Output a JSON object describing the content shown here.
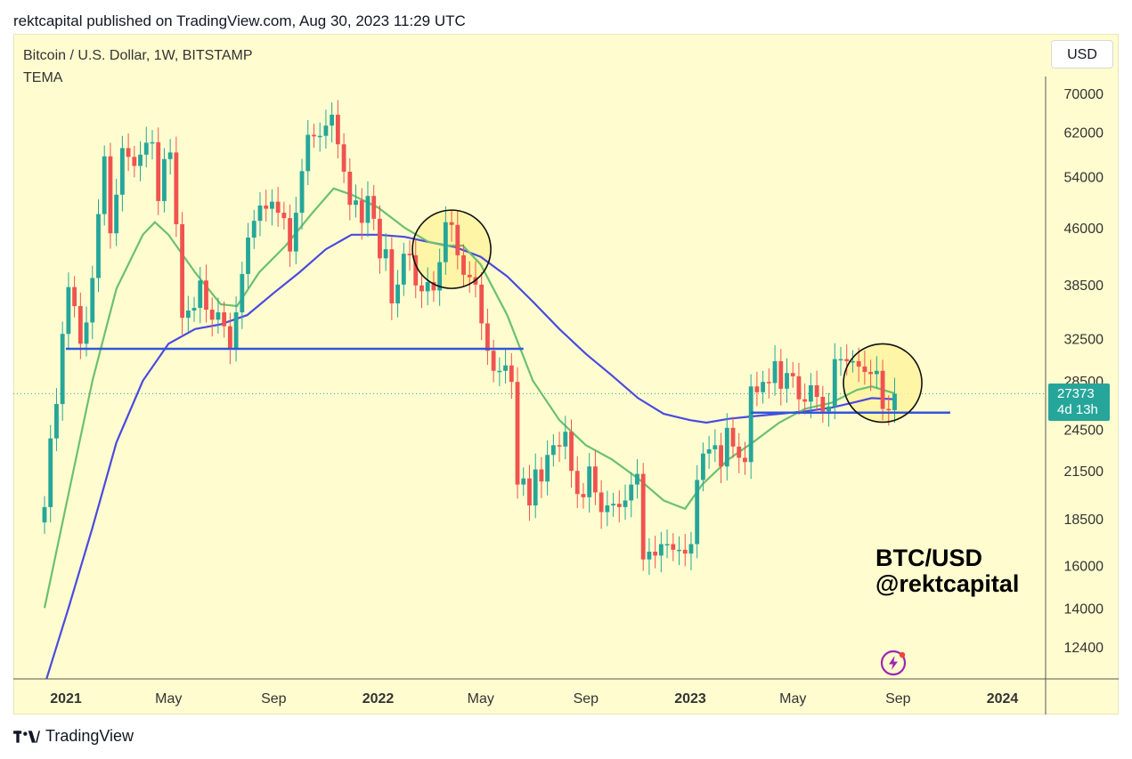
{
  "header": {
    "published": "rektcapital published on TradingView.com, Aug 30, 2023 11:29 UTC"
  },
  "chart_info": {
    "symbol": "Bitcoin / U.S. Dollar, 1W, BITSTAMP",
    "indicator": "TEMA"
  },
  "currency_button": "USD",
  "price_tag": {
    "price": "27373",
    "countdown": "4d 13h"
  },
  "watermark": {
    "line1": "BTC/USD",
    "line2": "@rektcapital"
  },
  "footer": {
    "brand": "TradingView"
  },
  "colors": {
    "up": "#26a69a",
    "down": "#ef5350",
    "tema_fast": "#6cc070",
    "tema_slow": "#4a4ae0",
    "support": "#3355dd",
    "background": "#fffdcf"
  },
  "chart_data": {
    "type": "candlestick",
    "title": "Bitcoin / U.S. Dollar, 1W, BITSTAMP",
    "y_scale": "log",
    "y_ticks": [
      70000,
      62000,
      54000,
      46000,
      38500,
      32500,
      28500,
      24500,
      21500,
      18500,
      16000,
      14000,
      12400
    ],
    "x_ticks": [
      {
        "label": "2021",
        "date": "2021-01-01",
        "bold": true
      },
      {
        "label": "May",
        "date": "2021-05-01",
        "bold": false
      },
      {
        "label": "Sep",
        "date": "2021-09-01",
        "bold": false
      },
      {
        "label": "2022",
        "date": "2022-01-01",
        "bold": true
      },
      {
        "label": "May",
        "date": "2022-05-01",
        "bold": false
      },
      {
        "label": "Sep",
        "date": "2022-09-01",
        "bold": false
      },
      {
        "label": "2023",
        "date": "2023-01-01",
        "bold": true
      },
      {
        "label": "May",
        "date": "2023-05-01",
        "bold": false
      },
      {
        "label": "Sep",
        "date": "2023-09-01",
        "bold": false
      },
      {
        "label": "2024",
        "date": "2024-01-01",
        "bold": true
      }
    ],
    "close_series": [
      [
        2020,
        12,
        7,
        19200
      ],
      [
        2020,
        12,
        14,
        23800
      ],
      [
        2020,
        12,
        21,
        26500
      ],
      [
        2020,
        12,
        28,
        33000
      ],
      [
        2021,
        1,
        4,
        38200
      ],
      [
        2021,
        1,
        11,
        36000
      ],
      [
        2021,
        1,
        18,
        32000
      ],
      [
        2021,
        1,
        25,
        34200
      ],
      [
        2021,
        2,
        1,
        39300
      ],
      [
        2021,
        2,
        8,
        48000
      ],
      [
        2021,
        2,
        15,
        57500
      ],
      [
        2021,
        2,
        22,
        45200
      ],
      [
        2021,
        3,
        1,
        51000
      ],
      [
        2021,
        3,
        8,
        59000
      ],
      [
        2021,
        3,
        15,
        57400
      ],
      [
        2021,
        3,
        22,
        55800
      ],
      [
        2021,
        3,
        29,
        57800
      ],
      [
        2021,
        4,
        5,
        60000
      ],
      [
        2021,
        4,
        12,
        60100
      ],
      [
        2021,
        4,
        19,
        50000
      ],
      [
        2021,
        4,
        26,
        57000
      ],
      [
        2021,
        5,
        3,
        58200
      ],
      [
        2021,
        5,
        10,
        46500
      ],
      [
        2021,
        5,
        17,
        34700
      ],
      [
        2021,
        5,
        24,
        35500
      ],
      [
        2021,
        5,
        31,
        35800
      ],
      [
        2021,
        6,
        7,
        39000
      ],
      [
        2021,
        6,
        14,
        35600
      ],
      [
        2021,
        6,
        21,
        34500
      ],
      [
        2021,
        6,
        28,
        35300
      ],
      [
        2021,
        7,
        5,
        33800
      ],
      [
        2021,
        7,
        12,
        31500
      ],
      [
        2021,
        7,
        19,
        35300
      ],
      [
        2021,
        7,
        26,
        39800
      ],
      [
        2021,
        8,
        2,
        44600
      ],
      [
        2021,
        8,
        9,
        47000
      ],
      [
        2021,
        8,
        16,
        49300
      ],
      [
        2021,
        8,
        23,
        48800
      ],
      [
        2021,
        8,
        30,
        49900
      ],
      [
        2021,
        9,
        6,
        48200
      ],
      [
        2021,
        9,
        13,
        47400
      ],
      [
        2021,
        9,
        20,
        42700
      ],
      [
        2021,
        9,
        27,
        48200
      ],
      [
        2021,
        10,
        4,
        54900
      ],
      [
        2021,
        10,
        11,
        61500
      ],
      [
        2021,
        10,
        18,
        61200
      ],
      [
        2021,
        10,
        25,
        61300
      ],
      [
        2021,
        11,
        1,
        63300
      ],
      [
        2021,
        11,
        8,
        65500
      ],
      [
        2021,
        11,
        15,
        59700
      ],
      [
        2021,
        11,
        22,
        54800
      ],
      [
        2021,
        11,
        29,
        49400
      ],
      [
        2021,
        12,
        6,
        50100
      ],
      [
        2021,
        12,
        13,
        46700
      ],
      [
        2021,
        12,
        20,
        50800
      ],
      [
        2021,
        12,
        27,
        47300
      ],
      [
        2022,
        1,
        3,
        41800
      ],
      [
        2022,
        1,
        10,
        43000
      ],
      [
        2022,
        1,
        17,
        36300
      ],
      [
        2022,
        1,
        24,
        38500
      ],
      [
        2022,
        1,
        31,
        42400
      ],
      [
        2022,
        2,
        7,
        42200
      ],
      [
        2022,
        2,
        14,
        38400
      ],
      [
        2022,
        2,
        21,
        37700
      ],
      [
        2022,
        2,
        28,
        38800
      ],
      [
        2022,
        3,
        7,
        37800
      ],
      [
        2022,
        3,
        14,
        41300
      ],
      [
        2022,
        3,
        21,
        46800
      ],
      [
        2022,
        3,
        28,
        46400
      ],
      [
        2022,
        4,
        4,
        42200
      ],
      [
        2022,
        4,
        11,
        39700
      ],
      [
        2022,
        4,
        18,
        39400
      ],
      [
        2022,
        4,
        25,
        38500
      ],
      [
        2022,
        5,
        2,
        34100
      ],
      [
        2022,
        5,
        9,
        31300
      ],
      [
        2022,
        5,
        16,
        29400
      ],
      [
        2022,
        5,
        23,
        29400
      ],
      [
        2022,
        5,
        30,
        29900
      ],
      [
        2022,
        6,
        6,
        28400
      ],
      [
        2022,
        6,
        13,
        20600
      ],
      [
        2022,
        6,
        20,
        21000
      ],
      [
        2022,
        6,
        27,
        19300
      ],
      [
        2022,
        7,
        4,
        21600
      ],
      [
        2022,
        7,
        11,
        20800
      ],
      [
        2022,
        7,
        18,
        22600
      ],
      [
        2022,
        7,
        25,
        23300
      ],
      [
        2022,
        8,
        1,
        23200
      ],
      [
        2022,
        8,
        8,
        24300
      ],
      [
        2022,
        8,
        15,
        21500
      ],
      [
        2022,
        8,
        22,
        20000
      ],
      [
        2022,
        8,
        29,
        19800
      ],
      [
        2022,
        9,
        5,
        21800
      ],
      [
        2022,
        9,
        12,
        20100
      ],
      [
        2022,
        9,
        19,
        18900
      ],
      [
        2022,
        9,
        26,
        19300
      ],
      [
        2022,
        10,
        3,
        19400
      ],
      [
        2022,
        10,
        10,
        19200
      ],
      [
        2022,
        10,
        17,
        19600
      ],
      [
        2022,
        10,
        24,
        20600
      ],
      [
        2022,
        10,
        31,
        21300
      ],
      [
        2022,
        11,
        7,
        16300
      ],
      [
        2022,
        11,
        14,
        16700
      ],
      [
        2022,
        11,
        21,
        16500
      ],
      [
        2022,
        11,
        28,
        17100
      ],
      [
        2022,
        12,
        5,
        17100
      ],
      [
        2022,
        12,
        12,
        16800
      ],
      [
        2022,
        12,
        19,
        16800
      ],
      [
        2022,
        12,
        26,
        16600
      ],
      [
        2023,
        1,
        2,
        17100
      ],
      [
        2023,
        1,
        9,
        20900
      ],
      [
        2023,
        1,
        16,
        22700
      ],
      [
        2023,
        1,
        23,
        23000
      ],
      [
        2023,
        1,
        30,
        23300
      ],
      [
        2023,
        2,
        6,
        21800
      ],
      [
        2023,
        2,
        13,
        24600
      ],
      [
        2023,
        2,
        20,
        23200
      ],
      [
        2023,
        2,
        27,
        22400
      ],
      [
        2023,
        3,
        6,
        22100
      ],
      [
        2023,
        3,
        13,
        28000
      ],
      [
        2023,
        3,
        20,
        27500
      ],
      [
        2023,
        3,
        27,
        28400
      ],
      [
        2023,
        4,
        3,
        28300
      ],
      [
        2023,
        4,
        10,
        30300
      ],
      [
        2023,
        4,
        17,
        27800
      ],
      [
        2023,
        4,
        24,
        29200
      ],
      [
        2023,
        5,
        1,
        28900
      ],
      [
        2023,
        5,
        8,
        26900
      ],
      [
        2023,
        5,
        15,
        26700
      ],
      [
        2023,
        5,
        22,
        28100
      ],
      [
        2023,
        5,
        29,
        27100
      ],
      [
        2023,
        6,
        5,
        25900
      ],
      [
        2023,
        6,
        12,
        26300
      ],
      [
        2023,
        6,
        19,
        30500
      ],
      [
        2023,
        6,
        26,
        30500
      ],
      [
        2023,
        7,
        3,
        30300
      ],
      [
        2023,
        7,
        10,
        30300
      ],
      [
        2023,
        7,
        17,
        29800
      ],
      [
        2023,
        7,
        24,
        29300
      ],
      [
        2023,
        7,
        31,
        29100
      ],
      [
        2023,
        8,
        7,
        29400
      ],
      [
        2023,
        8,
        14,
        26100
      ],
      [
        2023,
        8,
        21,
        26000
      ],
      [
        2023,
        8,
        28,
        27373
      ]
    ],
    "tema_fast": [
      [
        2020,
        12,
        7,
        14000
      ],
      [
        2021,
        1,
        4,
        20000
      ],
      [
        2021,
        2,
        1,
        28500
      ],
      [
        2021,
        3,
        1,
        38000
      ],
      [
        2021,
        4,
        1,
        45000
      ],
      [
        2021,
        4,
        15,
        46800
      ],
      [
        2021,
        5,
        1,
        45000
      ],
      [
        2021,
        6,
        1,
        40000
      ],
      [
        2021,
        7,
        1,
        36200
      ],
      [
        2021,
        7,
        20,
        36000
      ],
      [
        2021,
        8,
        15,
        40000
      ],
      [
        2021,
        9,
        15,
        43500
      ],
      [
        2021,
        10,
        15,
        48000
      ],
      [
        2021,
        11,
        10,
        52000
      ],
      [
        2021,
        12,
        1,
        51000
      ],
      [
        2022,
        1,
        1,
        49000
      ],
      [
        2022,
        2,
        1,
        46000
      ],
      [
        2022,
        3,
        1,
        44000
      ],
      [
        2022,
        3,
        20,
        43500
      ],
      [
        2022,
        4,
        10,
        43500
      ],
      [
        2022,
        5,
        1,
        41000
      ],
      [
        2022,
        6,
        1,
        35000
      ],
      [
        2022,
        7,
        1,
        28500
      ],
      [
        2022,
        8,
        1,
        25200
      ],
      [
        2022,
        9,
        1,
        23300
      ],
      [
        2022,
        10,
        1,
        22300
      ],
      [
        2022,
        11,
        1,
        21000
      ],
      [
        2022,
        12,
        1,
        19600
      ],
      [
        2022,
        12,
        26,
        19100
      ],
      [
        2023,
        1,
        15,
        20600
      ],
      [
        2023,
        2,
        15,
        22300
      ],
      [
        2023,
        3,
        15,
        23500
      ],
      [
        2023,
        4,
        15,
        25000
      ],
      [
        2023,
        5,
        15,
        26100
      ],
      [
        2023,
        6,
        15,
        26600
      ],
      [
        2023,
        7,
        15,
        27700
      ],
      [
        2023,
        8,
        1,
        28000
      ],
      [
        2023,
        8,
        28,
        27400
      ]
    ],
    "tema_slow": [
      [
        2020,
        12,
        7,
        11000
      ],
      [
        2021,
        1,
        4,
        14000
      ],
      [
        2021,
        2,
        1,
        18000
      ],
      [
        2021,
        3,
        1,
        23500
      ],
      [
        2021,
        4,
        1,
        28500
      ],
      [
        2021,
        5,
        1,
        32000
      ],
      [
        2021,
        6,
        1,
        33500
      ],
      [
        2021,
        7,
        1,
        34000
      ],
      [
        2021,
        8,
        1,
        35000
      ],
      [
        2021,
        9,
        1,
        37500
      ],
      [
        2021,
        10,
        1,
        40000
      ],
      [
        2021,
        11,
        1,
        43000
      ],
      [
        2021,
        12,
        1,
        45000
      ],
      [
        2022,
        1,
        1,
        45000
      ],
      [
        2022,
        2,
        1,
        44700
      ],
      [
        2022,
        3,
        1,
        44000
      ],
      [
        2022,
        4,
        1,
        43300
      ],
      [
        2022,
        5,
        1,
        42000
      ],
      [
        2022,
        6,
        1,
        39500
      ],
      [
        2022,
        7,
        1,
        36500
      ],
      [
        2022,
        8,
        1,
        33500
      ],
      [
        2022,
        9,
        1,
        31000
      ],
      [
        2022,
        10,
        1,
        29000
      ],
      [
        2022,
        11,
        1,
        27000
      ],
      [
        2022,
        12,
        1,
        25700
      ],
      [
        2023,
        1,
        1,
        25200
      ],
      [
        2023,
        1,
        20,
        25000
      ],
      [
        2023,
        2,
        15,
        25300
      ],
      [
        2023,
        3,
        15,
        25500
      ],
      [
        2023,
        4,
        15,
        25700
      ],
      [
        2023,
        5,
        15,
        25900
      ],
      [
        2023,
        6,
        15,
        26200
      ],
      [
        2023,
        7,
        15,
        26700
      ],
      [
        2023,
        8,
        1,
        27000
      ],
      [
        2023,
        8,
        28,
        26900
      ]
    ],
    "support_lines": [
      {
        "price": 31500,
        "from": "2021-01-01",
        "to": "2022-06-20"
      },
      {
        "price": 25800,
        "from": "2023-03-13",
        "to": "2023-11-01"
      }
    ],
    "highlight_circles": [
      {
        "date": "2022-03-28",
        "price": 43000
      },
      {
        "date": "2023-08-14",
        "price": 28300
      }
    ],
    "current_price": 27373
  }
}
